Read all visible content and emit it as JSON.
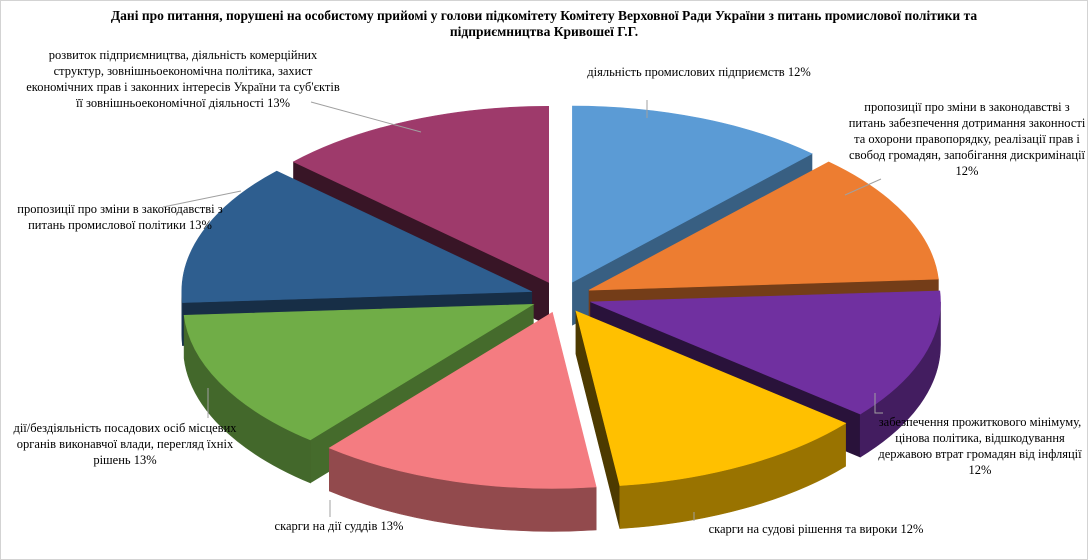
{
  "chart_data": {
    "type": "pie",
    "style": "3d-exploded-pie",
    "title": "Дані про питання, порушені на особистому прийомі у голови підкомітету Комітету Верховної Ради України з питань промислової політики та підприємництва Кривошеї Г.Г.",
    "unit": "%",
    "legend": "none",
    "background_color": "#FFFFFF",
    "border_color": "#D3D3D3",
    "leader_line_color": "#A0A0A0",
    "slices": [
      {
        "label": "діяльність  промислових підприємств",
        "pct": "12%",
        "value": 12,
        "color": "#5B9BD5"
      },
      {
        "label": "пропозиції про зміни в законодавстві  з питань забезпечення дотримання законності та охорони правопорядку, реалізації прав і свобод громадян, запобігання дискримінації",
        "pct": "12%",
        "value": 12,
        "color": "#ED7D31"
      },
      {
        "label": "забезпечення прожиткового мінімуму, цінова політика, відшкодування  державою втрат громадян від інфляції",
        "pct": "12%",
        "value": 12,
        "color": "#7030A0"
      },
      {
        "label": "скарги на судові рішення та вироки",
        "pct": "12%",
        "value": 12,
        "color": "#FFC000"
      },
      {
        "label": "скарги на дії  суддів",
        "pct": "13%",
        "value": 13,
        "color": "#F47C81"
      },
      {
        "label": "дії/бездіяльність  посадових осіб місцевих  органів виконавчої влади, перегляд їхніх  рішень",
        "pct": "13%",
        "value": 13,
        "color": "#70AD47"
      },
      {
        "label": "пропозиції  про зміни в законодавстві  з питань промислової політики",
        "pct": "13%",
        "value": 13,
        "color": "#2E5E8F"
      },
      {
        "label": "розвиток підприємництва, діяльність  комерційних  структур, зовнішньоекономічна політика, захист  економічних  прав і законних інтересів  України  та суб'єктів  її зовнішньоекономічної діяльності",
        "pct": "13%",
        "value": 13,
        "color": "#9E3A6B"
      }
    ]
  }
}
